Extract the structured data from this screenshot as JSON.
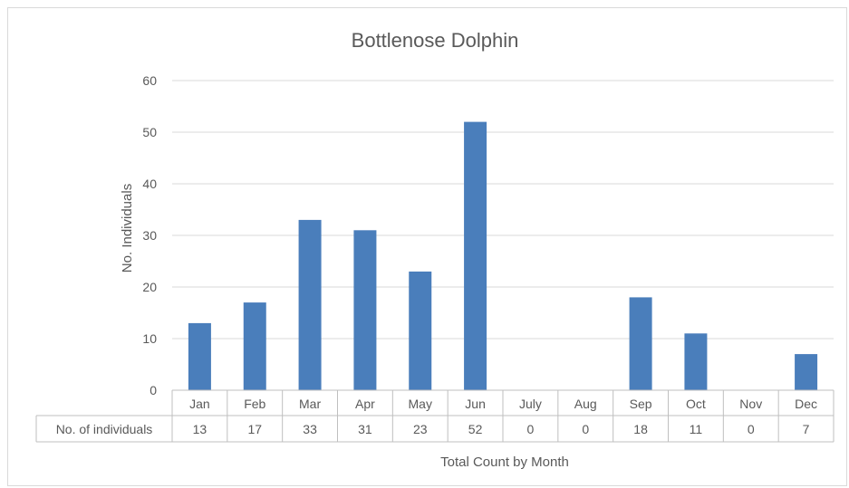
{
  "chart_data": {
    "type": "bar",
    "title": "Bottlenose Dolphin",
    "xlabel": "Total Count by Month",
    "ylabel": "No. Individuals",
    "ylim": [
      0,
      60
    ],
    "yticks": [
      0,
      10,
      20,
      30,
      40,
      50,
      60
    ],
    "grid": true,
    "categories": [
      "Jan",
      "Feb",
      "Mar",
      "Apr",
      "May",
      "Jun",
      "July",
      "Aug",
      "Sep",
      "Oct",
      "Nov",
      "Dec"
    ],
    "series": [
      {
        "name": "No. of individuals",
        "values": [
          13,
          17,
          33,
          31,
          23,
          52,
          0,
          0,
          18,
          11,
          0,
          7
        ],
        "color": "#4a7ebb"
      }
    ],
    "data_table": true
  }
}
